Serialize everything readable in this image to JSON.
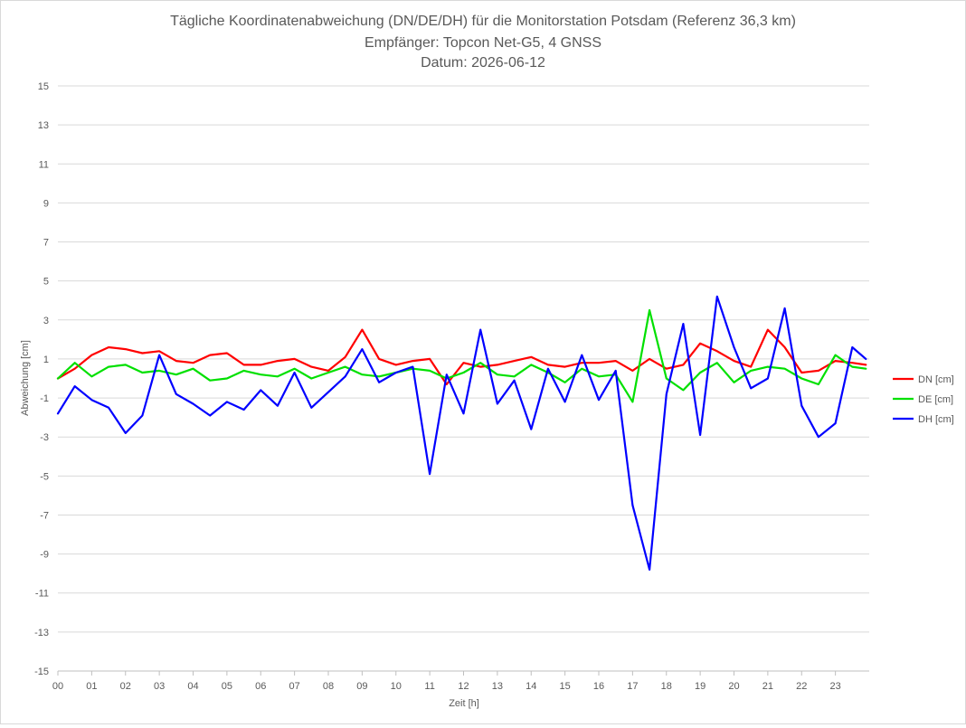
{
  "chart_data": {
    "type": "line",
    "title_lines": [
      "Tägliche Koordinatenabweichung (DN/DE/DH) für die Monitorstation Potsdam (Referenz 36,3 km)",
      "Empfänger: Topcon Net-G5, 4 GNSS",
      "Datum: 2026-06-12"
    ],
    "xlabel": "Zeit [h]",
    "ylabel": "Abweichung [cm]",
    "xlim": [
      0,
      24
    ],
    "ylim": [
      -15,
      15
    ],
    "x_ticks": [
      {
        "value": 0,
        "label": "00"
      },
      {
        "value": 1,
        "label": "01"
      },
      {
        "value": 2,
        "label": "02"
      },
      {
        "value": 3,
        "label": "03"
      },
      {
        "value": 4,
        "label": "04"
      },
      {
        "value": 5,
        "label": "05"
      },
      {
        "value": 6,
        "label": "06"
      },
      {
        "value": 7,
        "label": "07"
      },
      {
        "value": 8,
        "label": "08"
      },
      {
        "value": 9,
        "label": "09"
      },
      {
        "value": 10,
        "label": "10"
      },
      {
        "value": 11,
        "label": "11"
      },
      {
        "value": 12,
        "label": "12"
      },
      {
        "value": 13,
        "label": "13"
      },
      {
        "value": 14,
        "label": "14"
      },
      {
        "value": 15,
        "label": "15"
      },
      {
        "value": 16,
        "label": "16"
      },
      {
        "value": 17,
        "label": "17"
      },
      {
        "value": 18,
        "label": "18"
      },
      {
        "value": 19,
        "label": "19"
      },
      {
        "value": 20,
        "label": "20"
      },
      {
        "value": 21,
        "label": "21"
      },
      {
        "value": 22,
        "label": "22"
      },
      {
        "value": 23,
        "label": "23"
      }
    ],
    "y_ticks": [
      {
        "value": 15,
        "label": "15"
      },
      {
        "value": 13,
        "label": "13"
      },
      {
        "value": 11,
        "label": "11"
      },
      {
        "value": 9,
        "label": "9"
      },
      {
        "value": 7,
        "label": "7"
      },
      {
        "value": 5,
        "label": "5"
      },
      {
        "value": 3,
        "label": "3"
      },
      {
        "value": 1,
        "label": "1"
      },
      {
        "value": -1,
        "label": "-1"
      },
      {
        "value": -3,
        "label": "-3"
      },
      {
        "value": -5,
        "label": "-5"
      },
      {
        "value": -7,
        "label": "-7"
      },
      {
        "value": -9,
        "label": "-9"
      },
      {
        "value": -11,
        "label": "-11"
      },
      {
        "value": -13,
        "label": "-13"
      },
      {
        "value": -15,
        "label": "-15"
      }
    ],
    "grid": "horizontal",
    "legend_position": "right",
    "x": [
      0,
      0.5,
      1,
      1.5,
      2,
      2.5,
      3,
      3.5,
      4,
      4.5,
      5,
      5.5,
      6,
      6.5,
      7,
      7.5,
      8,
      8.5,
      9,
      9.5,
      10,
      10.5,
      11,
      11.5,
      12,
      12.5,
      13,
      13.5,
      14,
      14.5,
      15,
      15.5,
      16,
      16.5,
      17,
      17.5,
      18,
      18.5,
      19,
      19.5,
      20,
      20.5,
      21,
      21.5,
      22,
      22.5,
      23,
      23.5,
      23.9
    ],
    "series": [
      {
        "name": "DN [cm]",
        "color": "#ff0000",
        "values": [
          0.0,
          0.5,
          1.2,
          1.6,
          1.5,
          1.3,
          1.4,
          0.9,
          0.8,
          1.2,
          1.3,
          0.7,
          0.7,
          0.9,
          1.0,
          0.6,
          0.4,
          1.1,
          2.5,
          1.0,
          0.7,
          0.9,
          1.0,
          -0.3,
          0.8,
          0.6,
          0.7,
          0.9,
          1.1,
          0.7,
          0.6,
          0.8,
          0.8,
          0.9,
          0.4,
          1.0,
          0.5,
          0.7,
          1.8,
          1.4,
          0.9,
          0.6,
          2.5,
          1.6,
          0.3,
          0.4,
          0.9,
          0.8,
          0.7
        ]
      },
      {
        "name": "DE [cm]",
        "color": "#00e000",
        "values": [
          0.0,
          0.8,
          0.1,
          0.6,
          0.7,
          0.3,
          0.4,
          0.2,
          0.5,
          -0.1,
          0.0,
          0.4,
          0.2,
          0.1,
          0.5,
          0.0,
          0.3,
          0.6,
          0.2,
          0.1,
          0.3,
          0.5,
          0.4,
          0.0,
          0.3,
          0.8,
          0.2,
          0.1,
          0.7,
          0.3,
          -0.2,
          0.5,
          0.1,
          0.2,
          -1.2,
          3.5,
          0.0,
          -0.6,
          0.3,
          0.8,
          -0.2,
          0.4,
          0.6,
          0.5,
          0.0,
          -0.3,
          1.2,
          0.6,
          0.5
        ]
      },
      {
        "name": "DH [cm]",
        "color": "#0000ff",
        "values": [
          -1.8,
          -0.4,
          -1.1,
          -1.5,
          -2.8,
          -1.9,
          1.2,
          -0.8,
          -1.3,
          -1.9,
          -1.2,
          -1.6,
          -0.6,
          -1.4,
          0.3,
          -1.5,
          -0.7,
          0.1,
          1.5,
          -0.2,
          0.3,
          0.6,
          -4.9,
          0.2,
          -1.8,
          2.5,
          -1.3,
          -0.1,
          -2.6,
          0.5,
          -1.2,
          1.2,
          -1.1,
          0.4,
          -6.5,
          -9.8,
          -0.8,
          2.8,
          -2.9,
          4.2,
          1.6,
          -0.5,
          0.0,
          3.6,
          -1.4,
          -3.0,
          -2.3,
          1.6,
          1.0
        ]
      }
    ]
  }
}
